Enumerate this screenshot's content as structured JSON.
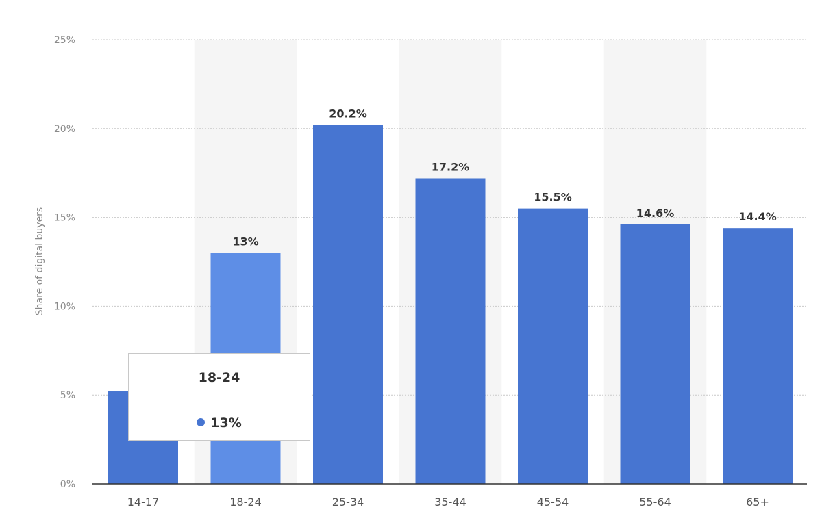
{
  "chart_data": {
    "type": "bar",
    "ylabel": "Share of digital buyers",
    "xlabel": "",
    "categories": [
      "14-17",
      "18-24",
      "25-34",
      "35-44",
      "45-54",
      "55-64",
      "65+"
    ],
    "values": [
      5.2,
      13,
      20.2,
      17.2,
      15.5,
      14.6,
      14.4
    ],
    "data_labels": [
      "",
      "13%",
      "20.2%",
      "17.2%",
      "15.5%",
      "14.6%",
      "14.4%"
    ],
    "y_ticks": [
      "0%",
      "5%",
      "10%",
      "15%",
      "20%",
      "25%"
    ],
    "y_tick_values": [
      0,
      5,
      10,
      15,
      20,
      25
    ],
    "ylim": [
      0,
      25
    ],
    "grid": true,
    "highlighted_category": "18-24",
    "colors": {
      "bar": "#4775d1",
      "bar_highlight": "#5e8ee6",
      "band": "#f5f5f5",
      "grid": "#c9c9c9"
    }
  },
  "tooltip": {
    "title": "18-24",
    "value": "13%"
  }
}
